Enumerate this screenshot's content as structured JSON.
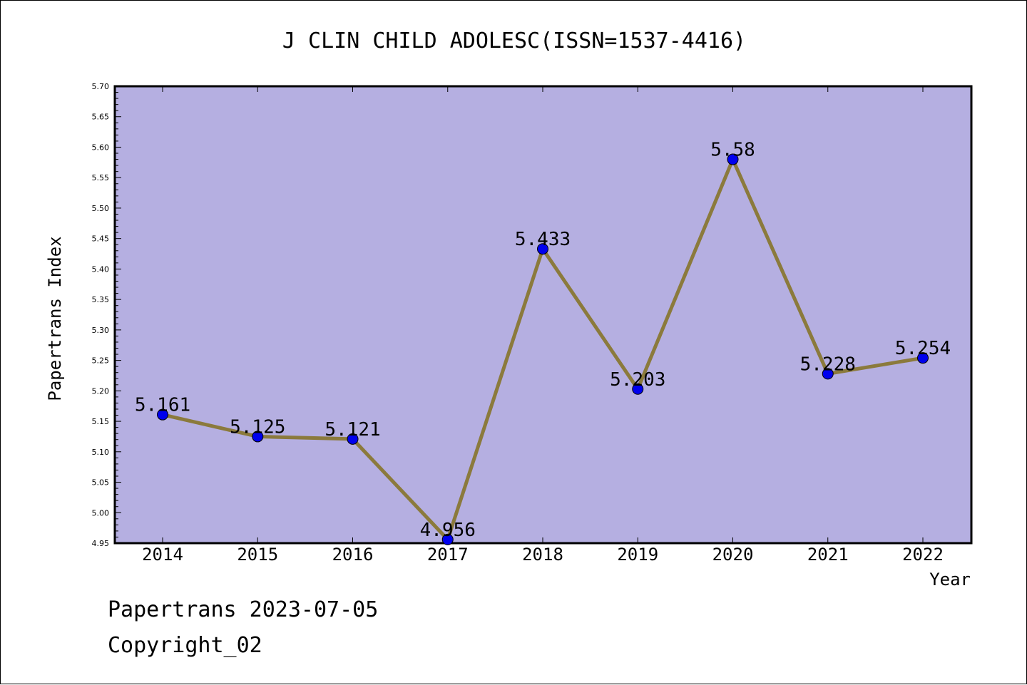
{
  "chart_data": {
    "type": "line",
    "title": "J CLIN CHILD ADOLESC(ISSN=1537-4416)",
    "xlabel": "Year",
    "ylabel": "Papertrans Index",
    "x": [
      "2014",
      "2015",
      "2016",
      "2017",
      "2018",
      "2019",
      "2020",
      "2021",
      "2022"
    ],
    "values": [
      5.161,
      5.125,
      5.121,
      4.956,
      5.433,
      5.203,
      5.58,
      5.228,
      5.254
    ],
    "data_labels": [
      "5.161",
      "5.125",
      "5.121",
      "4.956",
      "5.433",
      "5.203",
      "5.58",
      "5.228",
      "5.254"
    ],
    "ylim": [
      4.95,
      5.7
    ],
    "y_ticks": [
      "4.95",
      "5.00",
      "5.05",
      "5.10",
      "5.15",
      "5.20",
      "5.25",
      "5.30",
      "5.35",
      "5.40",
      "5.45",
      "5.50",
      "5.55",
      "5.60",
      "5.65",
      "5.70"
    ],
    "grid": false,
    "colors": {
      "plot_background": "#b5afe1",
      "line": "#8b7a3c",
      "marker": "#0000ee"
    }
  },
  "footer": {
    "line1": "Papertrans 2023-07-05",
    "line2": "Copyright_02"
  }
}
